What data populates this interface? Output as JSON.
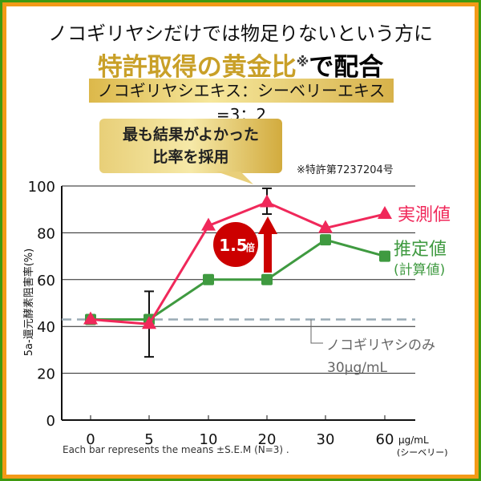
{
  "header": {
    "line1": "ノコギリヤシだけでは物足りないという方に",
    "line2_gold": "特許取得の黄金比",
    "line2_mark": "※",
    "line2_rest": "で配合",
    "ratio": "ノコギリヤシエキス：シーベリーエキス=3：2",
    "bubble_line1": "最も結果がよかった",
    "bubble_line2": "比率を採用",
    "patent_note": "※特許第7237204号"
  },
  "chart_data": {
    "type": "line",
    "categories": [
      "0",
      "5",
      "10",
      "20",
      "30",
      "60"
    ],
    "x_unit": "μg/mL",
    "x_unit_sub": "(シーベリー)",
    "ylabel": "5a-還元酵素阻害率(%)",
    "ylim": [
      0,
      100
    ],
    "yticks": [
      "0",
      "20",
      "40",
      "60",
      "80",
      "100"
    ],
    "grid": true,
    "series": [
      {
        "name": "実測値",
        "color": "#f0285a",
        "marker": "triangle",
        "values": [
          43,
          41,
          83,
          93,
          82,
          88
        ],
        "error_bars": [
          null,
          [
            27,
            55
          ],
          null,
          [
            88,
            99
          ],
          null,
          null
        ]
      },
      {
        "name": "推定値",
        "name_sub": "(計算値)",
        "color": "#3f9a40",
        "marker": "square",
        "values": [
          43,
          43,
          60,
          60,
          77,
          70
        ]
      }
    ],
    "baseline": {
      "value": 43,
      "label": "ノコギリヤシのみ",
      "label_sub": "30μg/mL",
      "color": "#9aabb5"
    },
    "annotation": {
      "text": "1.5",
      "suffix": "倍",
      "color": "#cc0000"
    },
    "note": "Each bar represents the means ±S.E.M (N=3) ."
  }
}
